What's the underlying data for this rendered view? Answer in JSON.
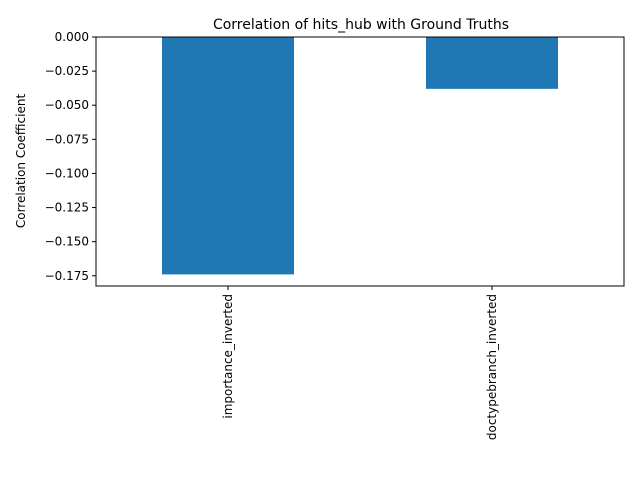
{
  "chart_data": {
    "type": "bar",
    "title": "Correlation of hits_hub with Ground Truths",
    "xlabel": "",
    "ylabel": "Correlation Coefficient",
    "categories": [
      "importance_inverted",
      "doctypebranch_inverted"
    ],
    "values": [
      -0.174,
      -0.038
    ],
    "ylim": [
      -0.1825,
      0.0
    ],
    "yticks": [
      0.0,
      -0.025,
      -0.05,
      -0.075,
      -0.1,
      -0.125,
      -0.15,
      -0.175
    ],
    "ytick_labels": [
      "0.000",
      "−0.025",
      "−0.050",
      "−0.075",
      "−0.100",
      "−0.125",
      "−0.150",
      "−0.175"
    ],
    "bar_color": "#1f77b4",
    "grid": false,
    "legend": "none"
  }
}
